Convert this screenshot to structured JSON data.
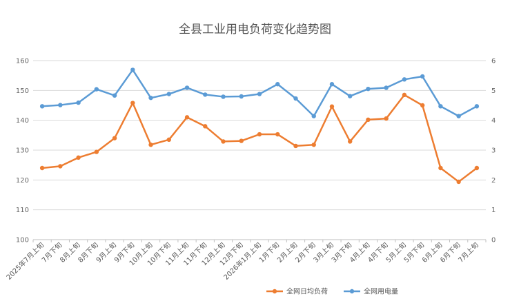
{
  "chart_data": {
    "type": "line",
    "title": "全县工业用电负荷变化趋势图",
    "categories": [
      "2025年7月上旬",
      "7月下旬",
      "8月上旬",
      "8月下旬",
      "9月上旬",
      "9月下旬",
      "10月上旬",
      "10月下旬",
      "11月上旬",
      "11月下旬",
      "12月上旬",
      "12月下旬",
      "2026年1月上旬",
      "1月下旬",
      "2月上旬",
      "2月下旬",
      "3月上旬",
      "3月下旬",
      "4月上旬",
      "4月下旬",
      "5月上旬",
      "5月下旬",
      "6月上旬",
      "6月下旬",
      "7月上旬"
    ],
    "y_left": {
      "min": 100,
      "max": 160,
      "ticks": [
        "100",
        "110",
        "120",
        "130",
        "140",
        "150",
        "160"
      ]
    },
    "y_right": {
      "min": 0,
      "max": 6,
      "ticks": [
        "0",
        "1",
        "2",
        "3",
        "4",
        "5",
        "6"
      ]
    },
    "grid": true,
    "legend_position": "bottom-right",
    "series": [
      {
        "name": "全网日均负荷",
        "axis": "left",
        "color": "#ED7D31",
        "values": [
          124,
          124.6,
          127.5,
          129.4,
          134,
          145.8,
          131.8,
          133.5,
          141,
          138,
          132.9,
          133.1,
          135.3,
          135.3,
          131.4,
          131.8,
          144.6,
          132.9,
          140.2,
          140.6,
          148.5,
          145,
          124,
          119.4,
          124
        ]
      },
      {
        "name": "全网用电量",
        "axis": "right",
        "color": "#5B9BD5",
        "values": [
          4.47,
          4.51,
          4.59,
          5.04,
          4.83,
          5.69,
          4.75,
          4.88,
          5.09,
          4.86,
          4.79,
          4.8,
          4.88,
          5.21,
          4.73,
          4.14,
          5.21,
          4.81,
          5.05,
          5.09,
          5.37,
          5.47,
          4.47,
          4.14,
          4.47
        ]
      }
    ]
  }
}
